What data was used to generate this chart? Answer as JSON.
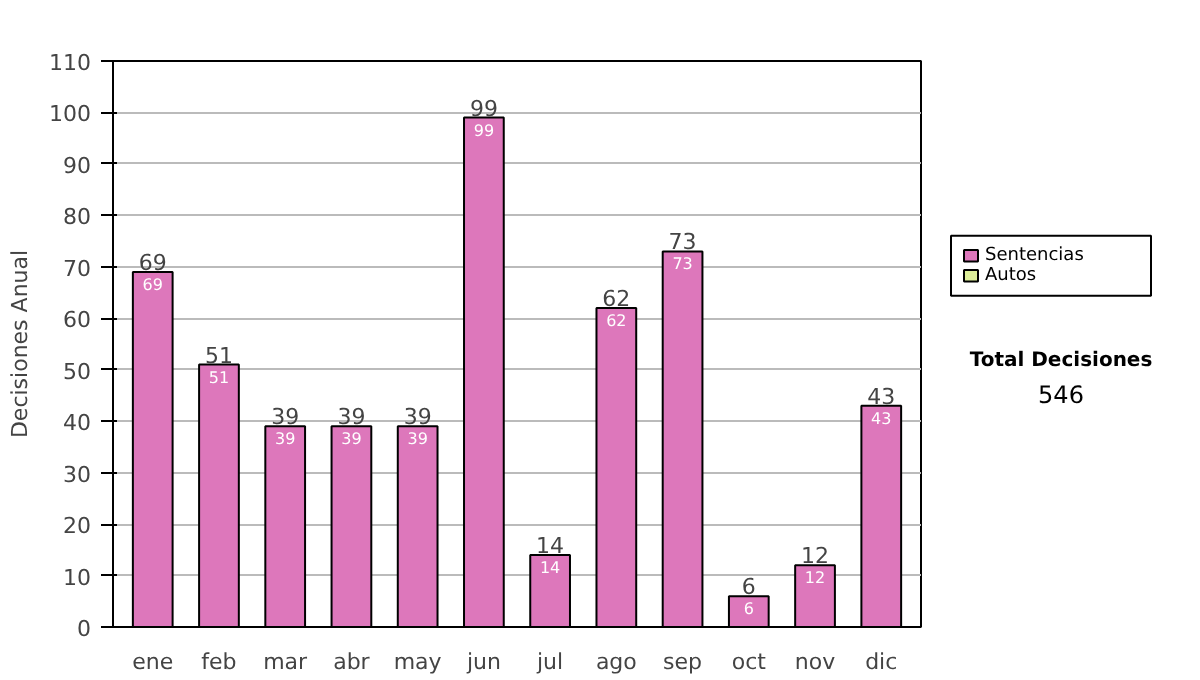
{
  "chart_data": {
    "type": "bar",
    "ylabel": "Decisiones Anual",
    "categories": [
      "ene",
      "feb",
      "mar",
      "abr",
      "may",
      "jun",
      "jul",
      "ago",
      "sep",
      "oct",
      "nov",
      "dic"
    ],
    "series": [
      {
        "name": "Sentencias",
        "color": "#dd77bb",
        "values": [
          69,
          51,
          39,
          39,
          39,
          99,
          14,
          62,
          73,
          6,
          12,
          43
        ]
      },
      {
        "name": "Autos",
        "color": "#ddee99",
        "values": [
          null,
          null,
          null,
          null,
          null,
          null,
          null,
          null,
          null,
          null,
          null,
          null
        ]
      }
    ],
    "stacked": true,
    "data_labels": true,
    "totals": [
      "69",
      "51",
      "39",
      "39",
      "39",
      "99",
      "14",
      "62",
      "73",
      "6",
      "12",
      "43"
    ],
    "ylim": [
      0,
      110
    ],
    "yticks": [
      0,
      10,
      20,
      30,
      40,
      50,
      60,
      70,
      80,
      90,
      100,
      110
    ],
    "grid": "y",
    "legend": "right",
    "annotations": [
      "Total Decisiones",
      "546"
    ]
  }
}
